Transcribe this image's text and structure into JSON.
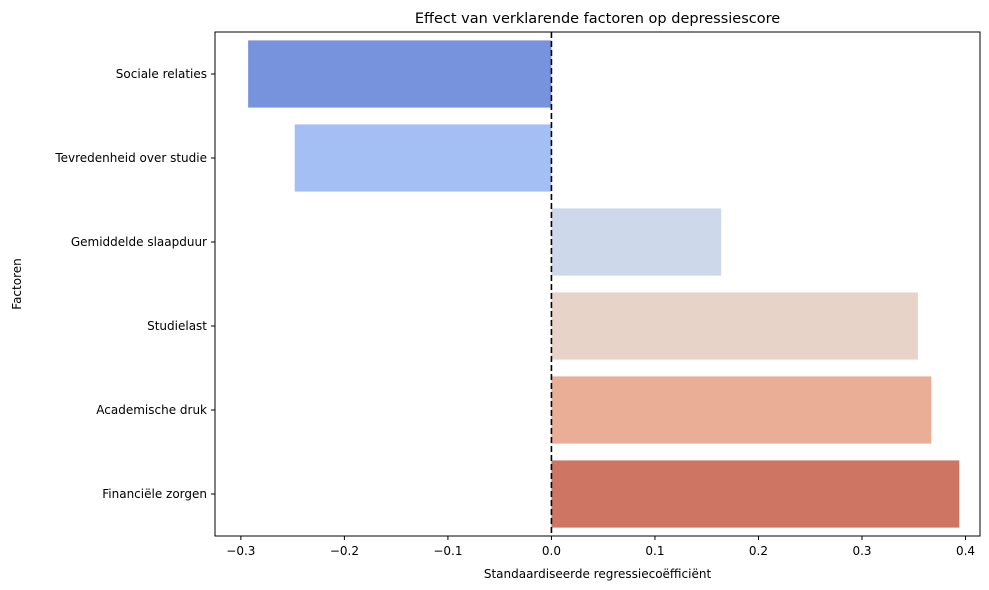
{
  "chart_data": {
    "type": "bar",
    "orientation": "horizontal",
    "title": "Effect van verklarende factoren op depressiescore",
    "xlabel": "Standaardiseerde regressiecoëfficiënt",
    "ylabel": "Factoren",
    "categories": [
      "Sociale relaties",
      "Tevredenheid over studie",
      "Gemiddelde slaapduur",
      "Studielast",
      "Academische druk",
      "Financiële zorgen"
    ],
    "values": [
      -0.293,
      -0.248,
      0.164,
      0.354,
      0.367,
      0.394
    ],
    "colors": [
      "#7793de",
      "#a4bff3",
      "#cdd9ea",
      "#e8d3c8",
      "#eaad96",
      "#cf7563"
    ],
    "xlim": [
      -0.325,
      0.414
    ],
    "xticks": [
      -0.3,
      -0.2,
      -0.1,
      0.0,
      0.1,
      0.2,
      0.3,
      0.4
    ],
    "xtick_labels": [
      "−0.3",
      "−0.2",
      "−0.1",
      "0.0",
      "0.1",
      "0.2",
      "0.3",
      "0.4"
    ],
    "reference_line": {
      "x": 0,
      "style": "dashed",
      "color": "#000000"
    },
    "grid": false,
    "legend": "none"
  }
}
